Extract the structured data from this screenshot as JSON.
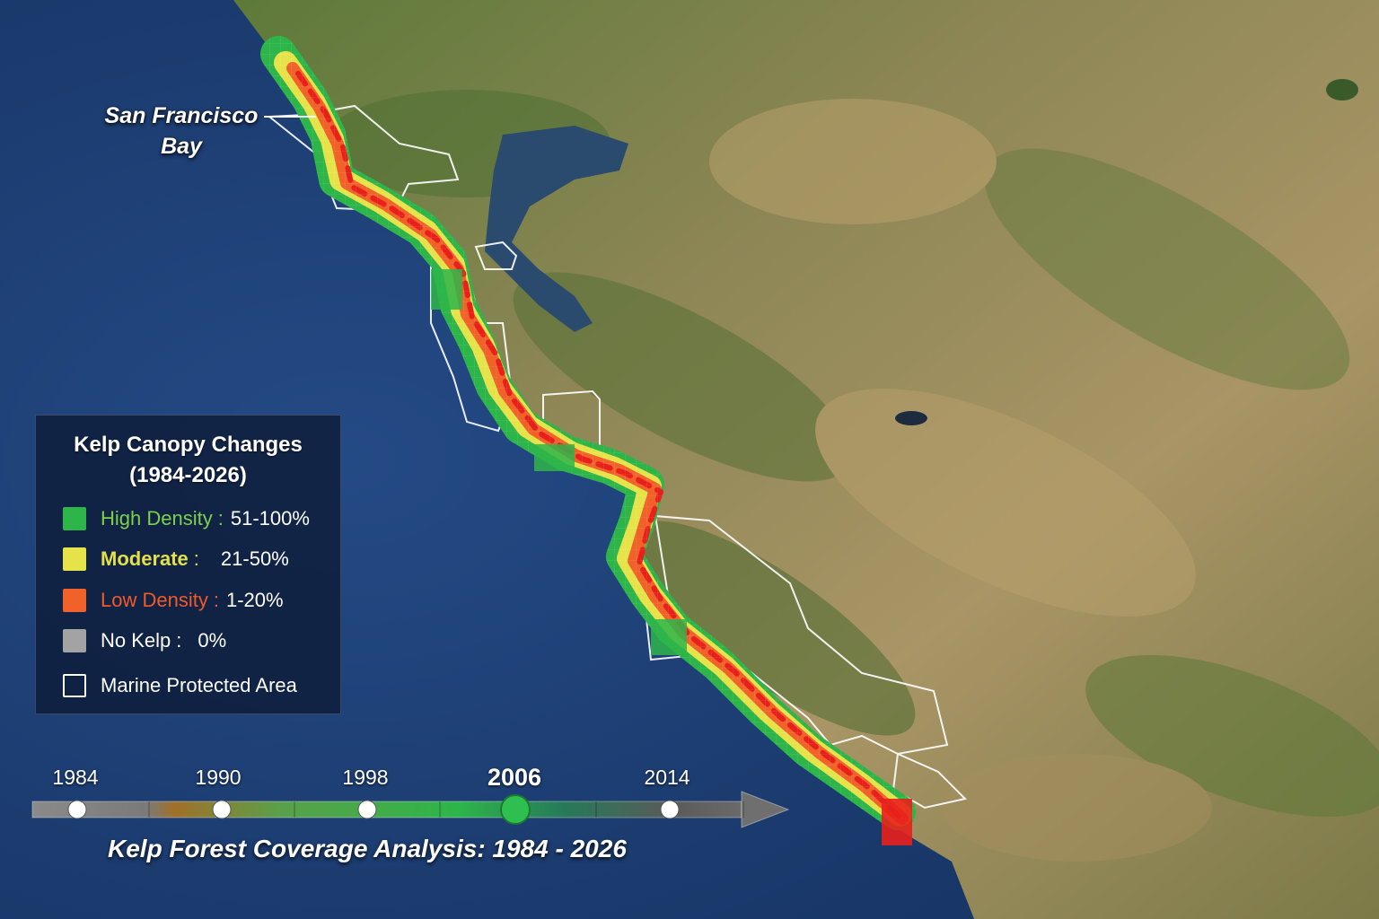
{
  "map": {
    "place_label": {
      "line1": "San Francisco",
      "line2": "Bay"
    }
  },
  "legend": {
    "title_line1": "Kelp Canopy Changes",
    "title_line2": "(1984-2026)",
    "items": [
      {
        "name": "High Density",
        "sep": ":",
        "range": "51-100%",
        "color": "#2eb54a",
        "name_color": "#7cd04a"
      },
      {
        "name": "Moderate",
        "sep": ":",
        "range": "21-50%",
        "color": "#e6e34a",
        "name_color": "#e3e04a"
      },
      {
        "name": "Low Density",
        "sep": ":",
        "range": "1-20%",
        "color": "#f0622a",
        "name_color": "#f05a2a"
      },
      {
        "name": "No Kelp",
        "sep": ":",
        "range": "0%",
        "color": "#a3a3a3",
        "name_color": "#ffffff"
      },
      {
        "name": "Marine Protected Area",
        "sep": "",
        "range": "",
        "color": "outline",
        "name_color": "#ffffff"
      }
    ]
  },
  "timeline": {
    "years": [
      "1984",
      "1990",
      "1998",
      "2006",
      "2014"
    ],
    "selected_year": "2006",
    "caption": "Kelp Forest Coverage Analysis: 1984 - 2026"
  },
  "colors": {
    "ocean": "#1d3f73",
    "land": "#8a8050",
    "high": "#2eb54a",
    "moderate": "#e6e34a",
    "low": "#f0622a",
    "severe": "#e8201c",
    "mpa_outline": "#ffffff"
  }
}
